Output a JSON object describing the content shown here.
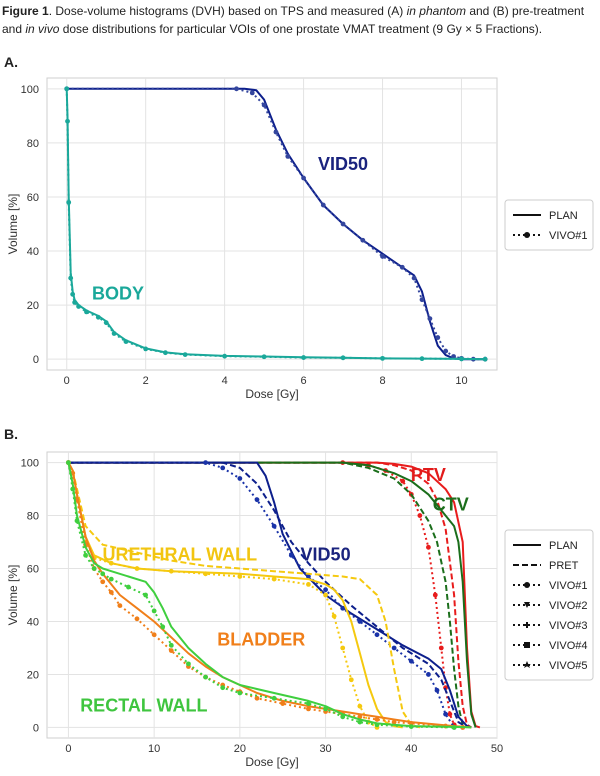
{
  "caption": {
    "lead": "Figure 1",
    "p1": ". Dose-volume histograms (DVH) based on TPS and measured (A) ",
    "i1": "in phantom",
    "p2": " and (B) pre-treatment and ",
    "i2": "in vivo",
    "p3": " dose distributions for particular VOIs of one prostate VMAT treatment (9 Gy × 5 Fractions)."
  },
  "chart_data": [
    {
      "panel": "A.",
      "type": "line",
      "xlabel": "Dose [Gy]",
      "ylabel": "Volume [%]",
      "xlim": [
        -0.5,
        10.9
      ],
      "ylim": [
        -4,
        104
      ],
      "xticks": [
        0,
        2,
        4,
        6,
        8,
        10
      ],
      "yticks": [
        0,
        20,
        40,
        60,
        80,
        100
      ],
      "grid": true,
      "legend_position": "right",
      "legend": [
        {
          "label": "PLAN",
          "style": "solid"
        },
        {
          "label": "VIVO#1",
          "style": "dotted-circle"
        }
      ],
      "annotations": [
        {
          "text": "VID50",
          "color": "#1a237e",
          "x": 7.0,
          "y": 70
        },
        {
          "text": "BODY",
          "color": "#1aa89a",
          "x": 1.3,
          "y": 22
        }
      ],
      "series": [
        {
          "name": "VID50",
          "variant": "PLAN",
          "color": "#0d1f8c",
          "dash": "solid",
          "x": [
            0,
            4.5,
            4.8,
            5.0,
            5.3,
            5.6,
            6.0,
            6.5,
            7.0,
            7.5,
            8.0,
            8.5,
            8.8,
            9.0,
            9.2,
            9.4,
            9.6,
            9.8,
            10.0,
            10.3,
            10.6
          ],
          "y": [
            100,
            100,
            99.5,
            96,
            85,
            76,
            67,
            57,
            50,
            44,
            39,
            34,
            31,
            25,
            14,
            5,
            1.5,
            0.3,
            0,
            0,
            0
          ]
        },
        {
          "name": "VID50",
          "variant": "VIVO#1",
          "color": "#34469e",
          "dash": "dotted-circle",
          "x": [
            0,
            4.3,
            4.7,
            5.0,
            5.3,
            5.6,
            6.0,
            6.5,
            7.0,
            7.5,
            8.0,
            8.5,
            8.8,
            9.0,
            9.2,
            9.4,
            9.6,
            9.8,
            10.0,
            10.3,
            10.6
          ],
          "y": [
            100,
            100,
            98.5,
            94,
            84,
            75,
            67,
            57,
            50,
            44,
            38,
            34,
            30,
            22,
            15,
            8,
            3,
            1,
            0.3,
            0,
            0
          ]
        },
        {
          "name": "BODY",
          "variant": "PLAN",
          "color": "#1aa89a",
          "dash": "solid",
          "x": [
            0,
            0.02,
            0.05,
            0.1,
            0.15,
            0.2,
            0.3,
            0.5,
            0.8,
            1.0,
            1.2,
            1.5,
            2.0,
            2.5,
            3.0,
            4.0,
            5.0,
            6.0,
            7.0,
            8.0,
            9.0,
            10.0,
            10.6
          ],
          "y": [
            100,
            90,
            60,
            32,
            25,
            22,
            20,
            18,
            16,
            14,
            10,
            7,
            4,
            2.5,
            1.8,
            1.2,
            1,
            0.7,
            0.5,
            0.3,
            0.2,
            0.1,
            0
          ]
        },
        {
          "name": "BODY",
          "variant": "VIVO#1",
          "color": "#1aa89a",
          "dash": "dotted-circle",
          "x": [
            0,
            0.02,
            0.05,
            0.1,
            0.15,
            0.2,
            0.3,
            0.5,
            0.8,
            1.0,
            1.2,
            1.5,
            2.0,
            2.5,
            3.0,
            4.0,
            5.0,
            6.0,
            7.0,
            8.0,
            9.0,
            10.0,
            10.6
          ],
          "y": [
            100,
            88,
            58,
            30,
            24,
            21,
            19.5,
            17.5,
            15.5,
            13.5,
            9.5,
            6.5,
            3.8,
            2.4,
            1.7,
            1.1,
            0.9,
            0.6,
            0.5,
            0.3,
            0.2,
            0.1,
            0
          ]
        }
      ]
    },
    {
      "panel": "B.",
      "type": "line",
      "xlabel": "Dose [Gy]",
      "ylabel": "Volume [%]",
      "xlim": [
        -2.5,
        50
      ],
      "ylim": [
        -4,
        104
      ],
      "xticks": [
        0,
        10,
        20,
        30,
        40,
        50
      ],
      "yticks": [
        0,
        20,
        40,
        60,
        80,
        100
      ],
      "grid": true,
      "legend_position": "right",
      "legend": [
        {
          "label": "PLAN",
          "style": "solid"
        },
        {
          "label": "PRET",
          "style": "dashed"
        },
        {
          "label": "VIVO#1",
          "style": "dotted-circle"
        },
        {
          "label": "VIVO#2",
          "style": "dotted-triangle"
        },
        {
          "label": "VIVO#3",
          "style": "dotted-plus"
        },
        {
          "label": "VIVO#4",
          "style": "dotted-square"
        },
        {
          "label": "VIVO#5",
          "style": "dotted-star"
        }
      ],
      "annotations": [
        {
          "text": "PTV",
          "color": "#e21b1b",
          "x": 42,
          "y": 93
        },
        {
          "text": "CTV",
          "color": "#1b6e1b",
          "x": 44.6,
          "y": 82
        },
        {
          "text": "URETHRAL WALL",
          "color": "#f2c511",
          "x": 13,
          "y": 63
        },
        {
          "text": "VID50",
          "color": "#1a237e",
          "x": 30,
          "y": 63
        },
        {
          "text": "BLADDER",
          "color": "#f07f1a",
          "x": 22.5,
          "y": 31
        },
        {
          "text": "RECTAL WALL",
          "color": "#3fc53f",
          "x": 8.8,
          "y": 6
        }
      ],
      "series": [
        {
          "name": "PTV",
          "variant": "PLAN",
          "color": "#e81c1c",
          "dash": "solid",
          "x": [
            0,
            36,
            38,
            40,
            42,
            44,
            45,
            46,
            46.5,
            47,
            47.5,
            48
          ],
          "y": [
            100,
            100,
            99.5,
            98.5,
            96,
            90,
            85,
            70,
            30,
            6,
            0.5,
            0
          ]
        },
        {
          "name": "PTV",
          "variant": "PRET",
          "color": "#e81c1c",
          "dash": "dashed",
          "x": [
            0,
            36,
            38,
            40,
            42,
            43,
            44,
            45,
            45.5,
            46,
            46.5,
            47
          ],
          "y": [
            100,
            100,
            99,
            97,
            92,
            86,
            75,
            50,
            25,
            8,
            1,
            0
          ]
        },
        {
          "name": "PTV",
          "variant": "VIVO",
          "color": "#e81c1c",
          "dash": "dotted",
          "x": [
            0,
            32,
            35,
            37,
            39,
            40,
            41,
            42,
            42.8,
            43.5,
            44,
            44.5,
            45,
            46
          ],
          "y": [
            100,
            100,
            99,
            97,
            93,
            88,
            80,
            68,
            50,
            30,
            15,
            5,
            1,
            0
          ]
        },
        {
          "name": "CTV",
          "variant": "PLAN",
          "color": "#1b6e1b",
          "dash": "solid",
          "x": [
            0,
            32,
            35,
            38,
            40,
            42,
            43,
            44,
            45,
            45.5,
            46,
            46.5,
            47,
            47.5
          ],
          "y": [
            100,
            100,
            99,
            96,
            93,
            88,
            84,
            80,
            76,
            70,
            55,
            25,
            5,
            0
          ]
        },
        {
          "name": "CTV",
          "variant": "PRET",
          "color": "#1b6e1b",
          "dash": "dashed",
          "x": [
            0,
            32,
            35,
            38,
            40,
            42,
            43,
            44,
            44.5,
            45,
            45.5,
            46,
            47
          ],
          "y": [
            100,
            100,
            98,
            94,
            88,
            78,
            70,
            55,
            40,
            22,
            8,
            1,
            0
          ]
        },
        {
          "name": "VID50",
          "variant": "PLAN",
          "color": "#0d1f8c",
          "dash": "solid",
          "x": [
            0,
            22,
            23,
            24,
            25,
            27,
            30,
            33,
            36,
            39,
            42,
            43.5,
            44.5,
            45.5,
            46.5,
            47
          ],
          "y": [
            100,
            100,
            95,
            85,
            73,
            60,
            50,
            43,
            37,
            31,
            26,
            22,
            14,
            4,
            0.5,
            0
          ]
        },
        {
          "name": "VID50",
          "variant": "PRET",
          "color": "#0d1f8c",
          "dash": "dashed",
          "x": [
            0,
            18,
            20,
            22,
            24,
            26,
            28,
            30,
            33,
            36,
            39,
            42,
            43.5,
            44.5,
            45.5,
            46.5
          ],
          "y": [
            100,
            100,
            98,
            92,
            82,
            70,
            62,
            55,
            46,
            38,
            30,
            24,
            18,
            10,
            2,
            0
          ]
        },
        {
          "name": "VID50",
          "variant": "VIVO",
          "color": "#1a33a8",
          "dash": "dotted-circle",
          "x": [
            0,
            16,
            18,
            20,
            22,
            24,
            26,
            28,
            30,
            32,
            34,
            36,
            38,
            40,
            42,
            43,
            44,
            45
          ],
          "y": [
            100,
            100,
            98,
            94,
            86,
            76,
            65,
            57,
            52,
            45,
            40,
            35,
            30,
            25,
            20,
            14,
            5,
            0
          ]
        },
        {
          "name": "URETHRAL WALL",
          "variant": "PLAN",
          "color": "#f5c90f",
          "dash": "solid",
          "x": [
            0,
            0.5,
            1,
            2,
            3,
            5,
            8,
            12,
            16,
            20,
            24,
            28,
            30,
            31,
            32,
            33,
            34,
            35,
            36,
            37,
            38,
            39
          ],
          "y": [
            100,
            97,
            88,
            72,
            65,
            62,
            60,
            59,
            58.5,
            58,
            57,
            56,
            54,
            52,
            48,
            40,
            28,
            16,
            7,
            2,
            0.5,
            0
          ]
        },
        {
          "name": "URETHRAL WALL",
          "variant": "PRET",
          "color": "#f5c90f",
          "dash": "dashed",
          "x": [
            0,
            0.5,
            1,
            2,
            4,
            8,
            12,
            16,
            20,
            24,
            28,
            32,
            34,
            36,
            37,
            38,
            39,
            40,
            41
          ],
          "y": [
            100,
            97,
            90,
            76,
            69,
            66,
            63,
            61,
            60,
            59,
            58,
            57,
            56,
            50,
            40,
            22,
            6,
            1,
            0
          ]
        },
        {
          "name": "URETHRAL WALL",
          "variant": "VIVO",
          "color": "#f5c90f",
          "dash": "dotted",
          "x": [
            0,
            0.5,
            1,
            2,
            3,
            5,
            8,
            12,
            16,
            20,
            24,
            28,
            30,
            31,
            32,
            33,
            34,
            35,
            36
          ],
          "y": [
            100,
            96,
            86,
            70,
            64,
            62,
            60,
            59,
            58,
            57,
            56,
            54,
            50,
            42,
            30,
            18,
            8,
            2,
            0
          ]
        },
        {
          "name": "BLADDER",
          "variant": "PLAN",
          "color": "#f07f1a",
          "dash": "solid",
          "x": [
            0,
            0.5,
            1,
            2,
            3,
            4,
            5,
            6,
            8,
            10,
            12,
            14,
            16,
            18,
            20,
            22,
            25,
            28,
            30,
            32,
            34,
            36,
            38,
            40,
            45,
            47
          ],
          "y": [
            100,
            97,
            88,
            72,
            63,
            58,
            54,
            50,
            45,
            40,
            34,
            28,
            23,
            19,
            16,
            13,
            10,
            8,
            7,
            6,
            5,
            4,
            3,
            2,
            0.5,
            0
          ]
        },
        {
          "name": "BLADDER",
          "variant": "VIVO",
          "color": "#f07f1a",
          "dash": "dotted",
          "x": [
            0,
            0.5,
            1,
            2,
            3,
            4,
            5,
            6,
            8,
            10,
            12,
            14,
            16,
            18,
            20,
            22,
            25,
            28,
            30,
            32,
            34,
            36,
            38,
            40,
            44,
            46
          ],
          "y": [
            100,
            96,
            86,
            69,
            60,
            55,
            51,
            46,
            41,
            35,
            29,
            23,
            19,
            16,
            13.5,
            11,
            9,
            7,
            6,
            5,
            4,
            3,
            2,
            1.5,
            0.5,
            0
          ]
        },
        {
          "name": "RECTAL WALL",
          "variant": "PLAN",
          "color": "#3fcf3f",
          "dash": "solid",
          "x": [
            0,
            0.5,
            1,
            2,
            3,
            4,
            5,
            7,
            9,
            10,
            11,
            12,
            14,
            16,
            18,
            20,
            24,
            28,
            30,
            32,
            34,
            36,
            40,
            45,
            47
          ],
          "y": [
            100,
            92,
            80,
            68,
            62,
            60,
            59,
            57,
            55,
            51,
            45,
            38,
            30,
            24,
            19,
            16,
            13,
            10,
            8,
            5,
            3,
            1.5,
            0.5,
            0.2,
            0
          ]
        },
        {
          "name": "RECTAL WALL",
          "variant": "VIVO",
          "color": "#3fcf3f",
          "dash": "dotted",
          "x": [
            0,
            0.5,
            1,
            2,
            3,
            4,
            5,
            7,
            9,
            10,
            11,
            12,
            14,
            16,
            18,
            20,
            24,
            28,
            30,
            32,
            34,
            36,
            40,
            45
          ],
          "y": [
            100,
            90,
            78,
            65,
            60,
            58,
            56,
            53,
            50,
            44,
            38,
            31,
            24,
            19,
            15,
            13,
            11,
            9,
            7,
            4,
            2,
            1,
            0.3,
            0
          ]
        }
      ]
    }
  ]
}
